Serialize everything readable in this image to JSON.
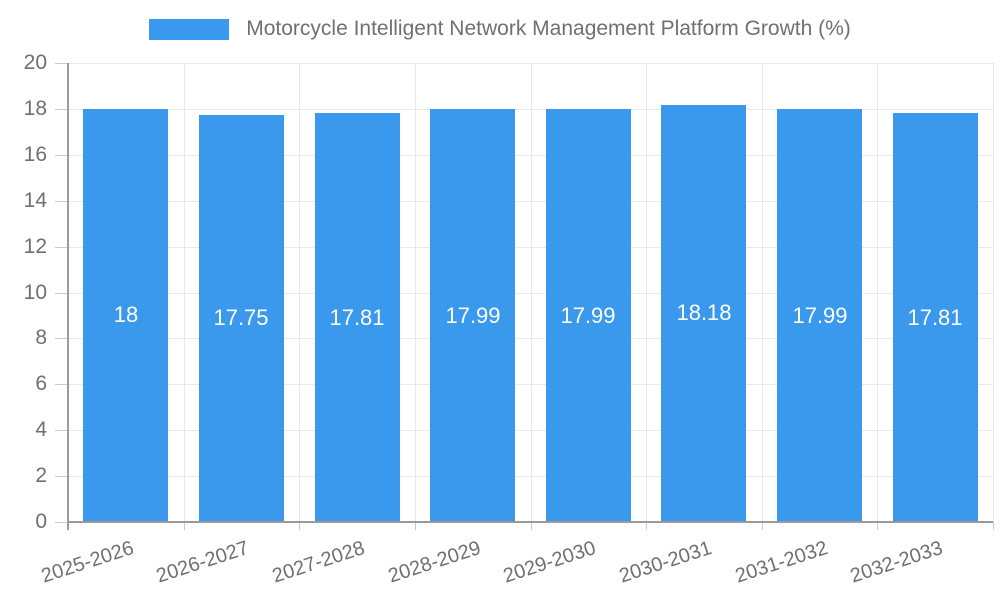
{
  "legend": {
    "label": "Motorcycle Intelligent Network Management Platform Growth (%)"
  },
  "colors": {
    "bar": "#3a99ec",
    "background": "#ffffff",
    "grid_line": "#e8e8e8",
    "axis_line": "#9b9b9b",
    "tick_mark": "#cacaca",
    "axis_text": "#707070",
    "bar_value_text": "#ffffff"
  },
  "chart_data": {
    "type": "bar",
    "title": "Motorcycle Intelligent Network Management Platform Growth (%)",
    "categories": [
      "2025-2026",
      "2026-2027",
      "2027-2028",
      "2028-2029",
      "2029-2030",
      "2030-2031",
      "2031-2032",
      "2032-2033"
    ],
    "values": [
      18,
      17.75,
      17.81,
      17.99,
      17.99,
      18.18,
      17.99,
      17.81
    ],
    "bar_labels": [
      "18",
      "17.75",
      "17.81",
      "17.99",
      "17.99",
      "18.18",
      "17.99",
      "17.81"
    ],
    "xlabel": "",
    "ylabel": "",
    "ylim": [
      0,
      20
    ],
    "ytick_step": 2,
    "ytick_labels": [
      "0",
      "2",
      "4",
      "6",
      "8",
      "10",
      "12",
      "14",
      "16",
      "18",
      "20"
    ],
    "grid": true,
    "legend_position": "top",
    "x_label_rotation_deg": -18
  }
}
